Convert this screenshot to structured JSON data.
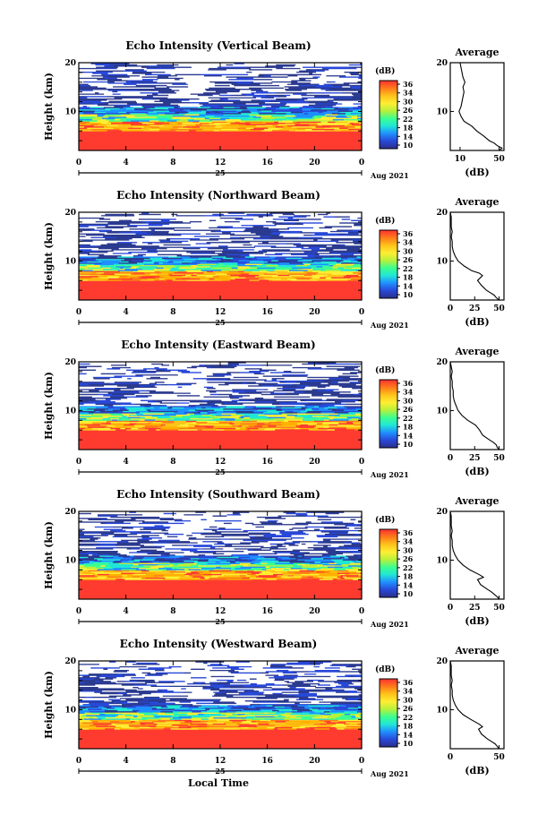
{
  "figure": {
    "xlabel": "Local Time",
    "day_label": "25",
    "date_label": "Aug 2021",
    "colorbar_label": "(dB)",
    "colorbar_ticks": [
      "36",
      "34",
      "30",
      "26",
      "22",
      "18",
      "14",
      "10"
    ],
    "profile_title": "Average",
    "profile_xlabel": "(dB)",
    "panel_ylabel": "Height (km)"
  },
  "colors": {
    "blank": "#ffffff",
    "low": "#2b3a8f",
    "strong": "#ff3b30",
    "colorbar": [
      "#ff3030",
      "#ff7a1a",
      "#ffc21a",
      "#ffee33",
      "#b8f03a",
      "#3cff8f",
      "#21e6d6",
      "#1f8fff",
      "#2848d8",
      "#2b2f8a"
    ]
  },
  "chart_data": [
    {
      "type": "heatmap",
      "title": "Echo Intensity (Vertical Beam)",
      "ylabel": "Height (km)",
      "xlabel": "Local Time",
      "xlim": [
        0,
        24
      ],
      "xticks": [
        "0",
        "4",
        "8",
        "12",
        "16",
        "20",
        "0"
      ],
      "ylim": [
        2,
        20
      ],
      "yticks": [
        "10",
        "20"
      ],
      "zlim": [
        10,
        36
      ],
      "zunit": "dB",
      "profile": {
        "title": "Average",
        "xlabel": "(dB)",
        "xticks": [
          "10",
          "50"
        ],
        "height": [
          2,
          2.5,
          3,
          3.5,
          4,
          4.5,
          5,
          6,
          7,
          8,
          9,
          10,
          10.5,
          11,
          12,
          13,
          14,
          15,
          16,
          17,
          18,
          19,
          20
        ],
        "intensity": [
          50,
          53,
          48,
          45,
          40,
          37,
          34,
          27,
          22,
          14,
          11,
          9,
          10,
          11,
          12,
          13,
          14,
          13,
          15,
          13,
          12,
          11,
          10
        ]
      }
    },
    {
      "type": "heatmap",
      "title": "Echo Intensity (Northward Beam)",
      "ylabel": "Height (km)",
      "xlabel": "Local Time",
      "xlim": [
        0,
        24
      ],
      "xticks": [
        "0",
        "4",
        "8",
        "12",
        "16",
        "20",
        "0"
      ],
      "ylim": [
        2,
        20
      ],
      "yticks": [
        "10",
        "20"
      ],
      "zlim": [
        10,
        36
      ],
      "zunit": "dB",
      "profile": {
        "title": "Average",
        "xlabel": "(dB)",
        "xticks": [
          "0",
          "25",
          "50"
        ],
        "height": [
          2,
          2.5,
          3,
          3.5,
          4,
          5,
          6,
          7,
          7.5,
          8,
          9,
          10,
          11,
          12,
          13,
          14,
          15,
          16,
          17,
          18,
          19,
          20
        ],
        "intensity": [
          50,
          47,
          45,
          41,
          37,
          32,
          28,
          33,
          30,
          22,
          14,
          8,
          5,
          3,
          2,
          2,
          1,
          2,
          1,
          1,
          1,
          0
        ]
      }
    },
    {
      "type": "heatmap",
      "title": "Echo Intensity (Eastward Beam)",
      "ylabel": "Height (km)",
      "xlabel": "Local Time",
      "xlim": [
        0,
        24
      ],
      "xticks": [
        "0",
        "4",
        "8",
        "12",
        "16",
        "20",
        "0"
      ],
      "ylim": [
        2,
        20
      ],
      "yticks": [
        "10",
        "20"
      ],
      "zlim": [
        10,
        36
      ],
      "zunit": "dB",
      "profile": {
        "title": "Average",
        "xlabel": "(dB)",
        "xticks": [
          "0",
          "25",
          "50"
        ],
        "height": [
          2,
          2.5,
          3,
          3.5,
          4,
          5,
          6,
          7,
          8,
          9,
          10,
          11,
          12,
          13,
          14,
          15,
          16,
          17,
          18,
          19,
          20
        ],
        "intensity": [
          50,
          48,
          47,
          44,
          40,
          33,
          30,
          26,
          18,
          12,
          8,
          6,
          4,
          3,
          3,
          2,
          2,
          1,
          2,
          1,
          0
        ]
      }
    },
    {
      "type": "heatmap",
      "title": "Echo Intensity (Southward Beam)",
      "ylabel": "Height (km)",
      "xlabel": "Local Time",
      "xlim": [
        0,
        24
      ],
      "xticks": [
        "0",
        "4",
        "8",
        "12",
        "16",
        "20",
        "0"
      ],
      "ylim": [
        2,
        20
      ],
      "yticks": [
        "10",
        "20"
      ],
      "zlim": [
        10,
        36
      ],
      "zunit": "dB",
      "profile": {
        "title": "Average",
        "xlabel": "(dB)",
        "xticks": [
          "0",
          "25",
          "50"
        ],
        "height": [
          2,
          2.5,
          3,
          3.5,
          4,
          5,
          6,
          6.5,
          7,
          8,
          9,
          10,
          11,
          12,
          13,
          14,
          15,
          16,
          17,
          18,
          19,
          20
        ],
        "intensity": [
          50,
          48,
          45,
          42,
          38,
          31,
          28,
          34,
          30,
          20,
          13,
          8,
          5,
          3,
          2,
          2,
          1,
          2,
          1,
          1,
          1,
          0
        ]
      }
    },
    {
      "type": "heatmap",
      "title": "Echo Intensity (Westward Beam)",
      "ylabel": "Height (km)",
      "xlabel": "Local Time",
      "xlim": [
        0,
        24
      ],
      "xticks": [
        "0",
        "4",
        "8",
        "12",
        "16",
        "20",
        "0"
      ],
      "ylim": [
        2,
        20
      ],
      "yticks": [
        "10",
        "20"
      ],
      "zlim": [
        10,
        36
      ],
      "zunit": "dB",
      "profile": {
        "title": "Average",
        "xlabel": "(dB)",
        "xticks": [
          "0",
          "50"
        ],
        "height": [
          2,
          2.5,
          3,
          3.5,
          4,
          5,
          6,
          6.5,
          7,
          8,
          9,
          10,
          11,
          12,
          13,
          14,
          15,
          16,
          17,
          18,
          19,
          20
        ],
        "intensity": [
          50,
          48,
          46,
          42,
          38,
          32,
          29,
          33,
          30,
          21,
          13,
          8,
          5,
          3,
          2,
          2,
          1,
          2,
          1,
          1,
          1,
          0
        ]
      }
    }
  ]
}
